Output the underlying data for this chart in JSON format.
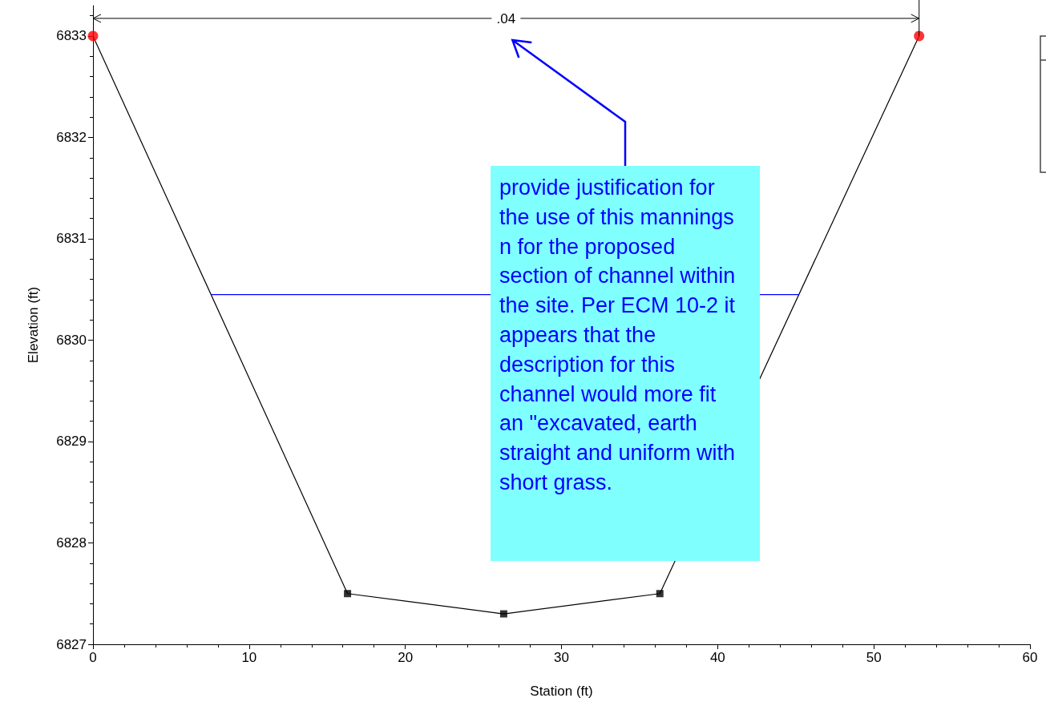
{
  "chart_data": {
    "type": "line",
    "xlabel": "Station (ft)",
    "ylabel": "Elevation (ft)",
    "xlim": [
      0,
      60
    ],
    "xticks": [
      0,
      10,
      20,
      30,
      40,
      50,
      60
    ],
    "ylim": [
      6827,
      6833.3
    ],
    "yticks": [
      6827,
      6828,
      6829,
      6830,
      6831,
      6832,
      6833
    ],
    "grid": false,
    "series": [
      {
        "color": "#000000",
        "marker": "none",
        "x": [
          0,
          16.3,
          26.3,
          36.3,
          52.9
        ],
        "values": [
          6833,
          6827.5,
          6827.3,
          6827.5,
          6833
        ]
      },
      {
        "type": "scatter",
        "color": "#000000",
        "marker": "square",
        "x": [
          16.3,
          26.3,
          36.3
        ],
        "values": [
          6827.5,
          6827.3,
          6827.5
        ]
      },
      {
        "type": "scatter",
        "color": "#ff0000",
        "marker": "circle",
        "x": [
          0,
          52.9
        ],
        "values": [
          6833,
          6833
        ]
      },
      {
        "type": "line",
        "color": "#0000ff",
        "marker": "none",
        "x": [
          7.55,
          45.2
        ],
        "values": [
          6830.45,
          6830.45
        ]
      }
    ],
    "annotations": [
      ".04",
      "provide justification for the use of this mannings n for the proposed section of channel within the site. Per ECM 10-2 it appears that the description for this channel would more fit an \"excavated, earth straight and uniform with short grass."
    ]
  }
}
